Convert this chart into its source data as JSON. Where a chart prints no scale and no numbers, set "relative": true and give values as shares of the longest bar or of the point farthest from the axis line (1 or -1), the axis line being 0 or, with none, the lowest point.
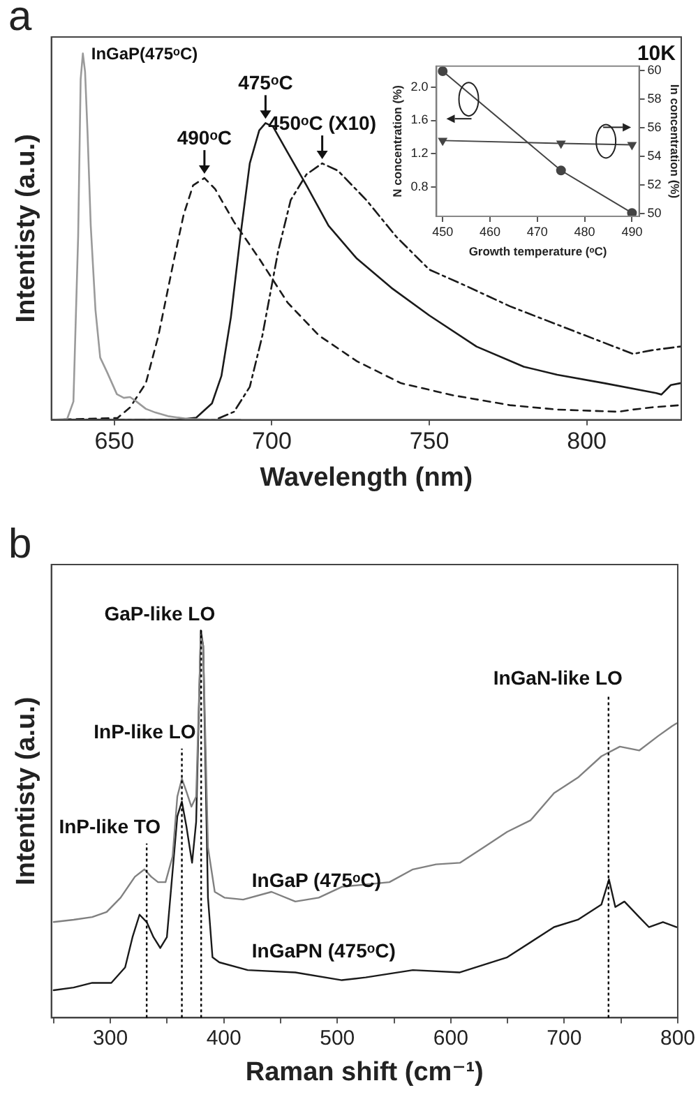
{
  "chart_data": [
    {
      "type": "line",
      "title": "a",
      "xlabel": "Wavelength (nm)",
      "ylabel": "Intentisty (a.u.)",
      "relative": true,
      "xlim": [
        630,
        830
      ],
      "xticks": [
        650,
        700,
        750,
        800
      ],
      "annotations": [
        "10K"
      ],
      "series": [
        {
          "name": "InGaP(475ᵒC)",
          "color": "#9a9a9a",
          "line_style": "solid",
          "x": [
            630,
            635,
            637,
            638.5,
            639.3,
            640,
            640.7,
            641.5,
            642.5,
            644,
            645.5,
            647.7,
            650.8,
            653,
            655,
            657,
            660,
            663,
            667,
            673,
            680,
            690
          ],
          "values": [
            0,
            0.002,
            0.05,
            0.5,
            0.93,
            1.0,
            0.95,
            0.78,
            0.53,
            0.3,
            0.17,
            0.13,
            0.07,
            0.06,
            0.062,
            0.05,
            0.03,
            0.02,
            0.01,
            0.003,
            0,
            0
          ]
        },
        {
          "name": "475ᵒC",
          "color": "#1a1a1a",
          "line_style": "solid",
          "x": [
            630,
            660,
            670,
            676,
            681,
            684,
            687,
            690,
            693,
            696,
            698,
            700.4,
            705,
            711,
            718,
            727,
            738,
            750,
            765,
            780,
            790.6,
            805.6,
            822,
            823.7,
            826.7,
            829.7
          ],
          "values": [
            0,
            0,
            0,
            0.006,
            0.045,
            0.12,
            0.28,
            0.5,
            0.7,
            0.79,
            0.81,
            0.8,
            0.73,
            0.64,
            0.53,
            0.44,
            0.36,
            0.285,
            0.2,
            0.145,
            0.123,
            0.1,
            0.073,
            0.069,
            0.095,
            0.1
          ]
        },
        {
          "name": "490ᵒC",
          "color": "#1a1a1a",
          "line_style": "dashed",
          "x": [
            630,
            651,
            655,
            660,
            664,
            669,
            672,
            675,
            678.6,
            682,
            688,
            696,
            705,
            715,
            727,
            741,
            757.5,
            775.6,
            790.6,
            810,
            814.7,
            820.7,
            829.7
          ],
          "values": [
            0,
            0.005,
            0.034,
            0.1,
            0.23,
            0.44,
            0.56,
            0.64,
            0.66,
            0.63,
            0.54,
            0.44,
            0.32,
            0.23,
            0.16,
            0.1,
            0.067,
            0.04,
            0.028,
            0.022,
            0.028,
            0.034,
            0.04
          ]
        },
        {
          "name": "450ᵒC (X10)",
          "color": "#1a1a1a",
          "line_style": "dashdot",
          "x": [
            630,
            682,
            688,
            693,
            697,
            702,
            706,
            711,
            716,
            721,
            730,
            739.5,
            750,
            760.5,
            775.6,
            790.6,
            802.6,
            814.7,
            820.7,
            829.7
          ],
          "values": [
            0,
            0,
            0.022,
            0.09,
            0.23,
            0.46,
            0.6,
            0.67,
            0.7,
            0.68,
            0.6,
            0.5,
            0.41,
            0.37,
            0.31,
            0.26,
            0.22,
            0.18,
            0.19,
            0.2
          ]
        }
      ]
    },
    {
      "type": "line",
      "xlabel": "Growth temperature (ᵒC)",
      "ylabel": "N concentration (%)",
      "y2label": "In concentration (%)",
      "x": [
        450,
        475,
        490
      ],
      "xlim": [
        448.7,
        491.5
      ],
      "xticks": [
        450,
        460,
        470,
        480,
        490
      ],
      "ylim": [
        0.45,
        2.25
      ],
      "yticks": [
        0.8,
        1.2,
        1.6,
        {
          "value": 2.0,
          "label": "2.0"
        }
      ],
      "y2lim": [
        49.8,
        60.3
      ],
      "y2ticks": [
        50,
        52,
        54,
        56,
        58,
        60
      ],
      "series": [
        {
          "color": "#444444",
          "marker": "circle",
          "line_style": "solid",
          "values": [
            2.19,
            1.0,
            0.49
          ]
        },
        {
          "color": "#444444",
          "marker": "triangle",
          "line_style": "solid",
          "axis": "y2",
          "values": [
            55.1,
            54.9,
            54.8
          ]
        }
      ]
    },
    {
      "type": "line",
      "title": "b",
      "xlabel": "Raman shift (cm⁻¹)",
      "ylabel": "Intentisty (a.u.)",
      "relative": true,
      "xlim": [
        248,
        800
      ],
      "xticks": [
        {
          "value": 250,
          "label": null
        },
        300,
        {
          "value": 350,
          "label": null
        },
        400,
        {
          "value": 450,
          "label": null
        },
        500,
        {
          "value": 550,
          "label": null
        },
        600,
        {
          "value": 650,
          "label": null
        },
        700,
        {
          "value": 750,
          "label": null
        },
        800
      ],
      "ref_lines": [
        {
          "axis": "x",
          "value": 332,
          "line_style": "dotted",
          "color": "#000000"
        },
        {
          "axis": "x",
          "value": 363,
          "line_style": "dotted",
          "color": "#000000"
        },
        {
          "axis": "x",
          "value": 380,
          "line_style": "dotted",
          "color": "#000000"
        },
        {
          "axis": "x",
          "value": 739,
          "line_style": "dotted",
          "color": "#000000"
        }
      ],
      "annotations": [
        {
          "text": "InP-like TO",
          "x": 332,
          "y": 0.45
        },
        {
          "text": "InP-like LO",
          "x": 363,
          "y": 0.695
        },
        {
          "text": "GaP-like LO",
          "x": 380,
          "y": 1.0
        },
        {
          "text": "InGaN-like LO",
          "x": 739,
          "y": 0.834
        }
      ],
      "series": [
        {
          "name": "InGaP (475ᵒC)",
          "color": "#808080",
          "line_style": "solid",
          "x": [
            250,
            267.6,
            284,
            296.7,
            309,
            321.6,
            330,
            336,
            342,
            348.6,
            354.8,
            359,
            363,
            367,
            371.4,
            375.6,
            379.7,
            381.8,
            386,
            392,
            400.5,
            417,
            442,
            463,
            483.6,
            504,
            525,
            545.9,
            566.6,
            587,
            608,
            629,
            649.7,
            670.4,
            691,
            712,
            732.7,
            749,
            766,
            782.6,
            795,
            799
          ],
          "values": [
            0.247,
            0.253,
            0.26,
            0.273,
            0.31,
            0.364,
            0.383,
            0.364,
            0.35,
            0.35,
            0.416,
            0.571,
            0.617,
            0.584,
            0.545,
            0.571,
            0.987,
            0.96,
            0.44,
            0.325,
            0.31,
            0.305,
            0.325,
            0.3,
            0.31,
            0.338,
            0.344,
            0.35,
            0.383,
            0.396,
            0.4,
            0.44,
            0.48,
            0.51,
            0.58,
            0.62,
            0.675,
            0.7,
            0.69,
            0.727,
            0.753,
            0.76
          ]
        },
        {
          "name": "InGaPN (475ᵒC)",
          "color": "#1a1a1a",
          "line_style": "solid",
          "x": [
            250,
            267.6,
            284,
            300.8,
            313,
            319.5,
            325.7,
            332,
            338,
            344,
            349.8,
            354.8,
            359,
            363,
            367,
            372,
            375.6,
            379.7,
            381.8,
            386,
            390,
            396,
            421,
            463,
            504,
            525,
            566.6,
            608,
            649.7,
            691,
            712,
            732.7,
            739.4,
            745,
            753,
            766,
            774.6,
            787,
            799
          ],
          "values": [
            0.071,
            0.078,
            0.09,
            0.09,
            0.13,
            0.208,
            0.266,
            0.247,
            0.208,
            0.18,
            0.208,
            0.377,
            0.52,
            0.558,
            0.494,
            0.4,
            0.506,
            1.0,
            0.96,
            0.31,
            0.156,
            0.143,
            0.123,
            0.117,
            0.097,
            0.104,
            0.123,
            0.117,
            0.156,
            0.234,
            0.253,
            0.292,
            0.357,
            0.286,
            0.3,
            0.26,
            0.234,
            0.247,
            0.234
          ]
        }
      ]
    }
  ]
}
